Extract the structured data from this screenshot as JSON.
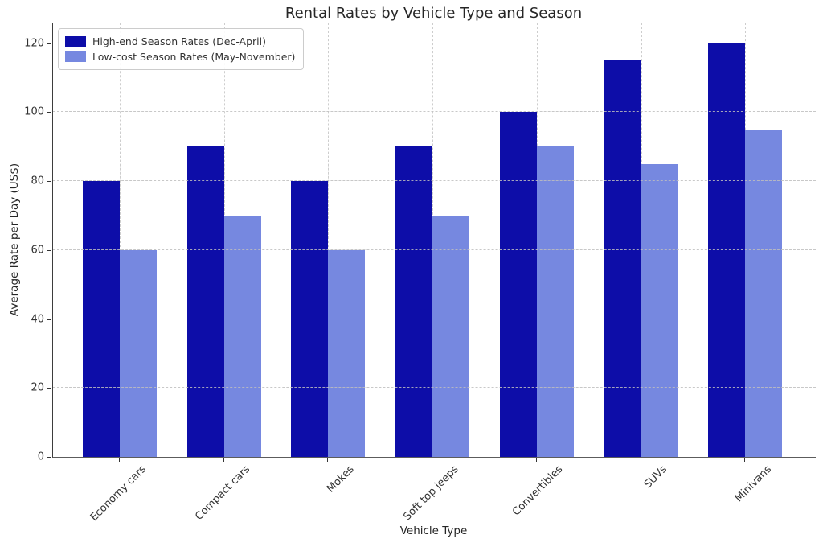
{
  "chart_data": {
    "type": "bar",
    "title": "Rental Rates by Vehicle Type and Season",
    "xlabel": "Vehicle Type",
    "ylabel": "Average Rate per Day (US$)",
    "categories": [
      "Economy cars",
      "Compact cars",
      "Mokes",
      "Soft top jeeps",
      "Convertibles",
      "SUVs",
      "Minivans"
    ],
    "series": [
      {
        "name": "High-end Season Rates (Dec-April)",
        "color": "#0d0da8",
        "values": [
          80,
          90,
          80,
          90,
          100,
          115,
          120
        ]
      },
      {
        "name": "Low-cost Season Rates (May-November)",
        "color": "#7688e0",
        "values": [
          60,
          70,
          60,
          70,
          90,
          85,
          95
        ]
      }
    ],
    "yticks": [
      0,
      20,
      40,
      60,
      80,
      100,
      120
    ],
    "ylim": [
      0,
      126
    ],
    "grid": true,
    "grid_style": "dashed",
    "legend_position": "upper left",
    "colors": {
      "grid": "#c9c9c9",
      "spine": "#4a4a4a",
      "text": "#262626",
      "tick_text": "#333333"
    }
  }
}
